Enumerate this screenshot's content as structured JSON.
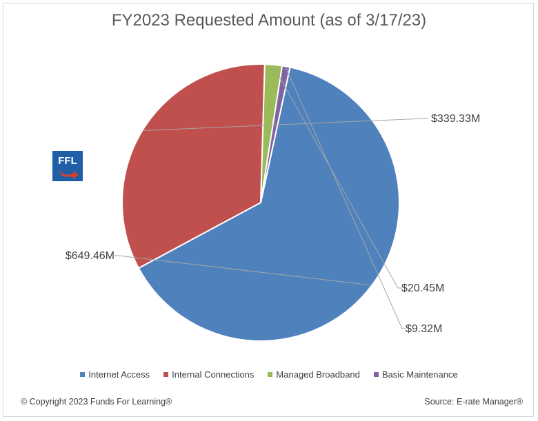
{
  "chart_data": {
    "type": "pie",
    "title": "FY2023 Requested Amount (as of 3/17/23)",
    "categories": [
      "Internet Access",
      "Internal Connections",
      "Managed Broadband",
      "Basic Maintenance"
    ],
    "values": [
      649.46,
      339.33,
      20.45,
      9.32
    ],
    "data_labels": [
      "$649.46M",
      "$339.33M",
      "$20.45M",
      "$9.32M"
    ],
    "colors": [
      "#4f81bd",
      "#c0504d",
      "#9bbb59",
      "#8064a2"
    ],
    "legend_position": "bottom"
  },
  "logo_text": "FFL",
  "footer": {
    "copyright": "© Copyright 2023 Funds For Learning®",
    "source": "Source: E-rate Manager®"
  }
}
